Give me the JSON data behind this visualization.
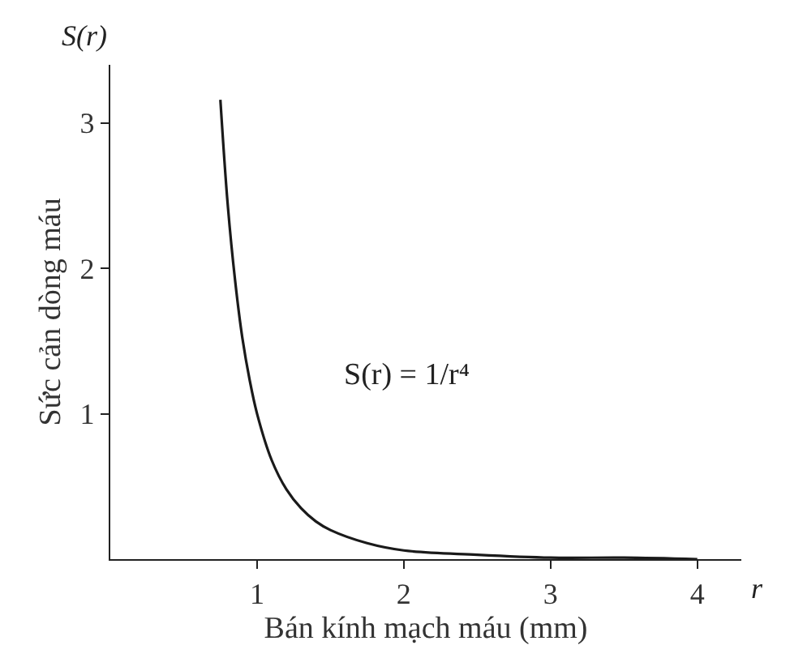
{
  "chart_data": {
    "type": "line",
    "xlabel": "Bán kính mạch máu (mm)",
    "ylabel": "Sức cản dòng máu",
    "annotations": [
      "S(r)",
      "r",
      "S(r) = 1/r⁴"
    ],
    "x": [
      0.75,
      0.8,
      0.85,
      0.9,
      0.95,
      1.0,
      1.1,
      1.2,
      1.3,
      1.4,
      1.5,
      1.75,
      2.0,
      2.5,
      3.0,
      3.5,
      4.0
    ],
    "series": [
      {
        "color": "#1a1a1a",
        "values": [
          3.16,
          2.44,
          1.92,
          1.52,
          1.23,
          1.0,
          0.68,
          0.48,
          0.35,
          0.26,
          0.2,
          0.11,
          0.06,
          0.03,
          0.01,
          0.01,
          0.0
        ]
      }
    ],
    "xlim": [
      0,
      4.3
    ],
    "ylim": [
      0,
      3.4
    ],
    "xticks": [
      1,
      2,
      3,
      4
    ],
    "yticks": [
      1,
      2,
      3
    ],
    "marker": "none",
    "line_style": "solid"
  }
}
